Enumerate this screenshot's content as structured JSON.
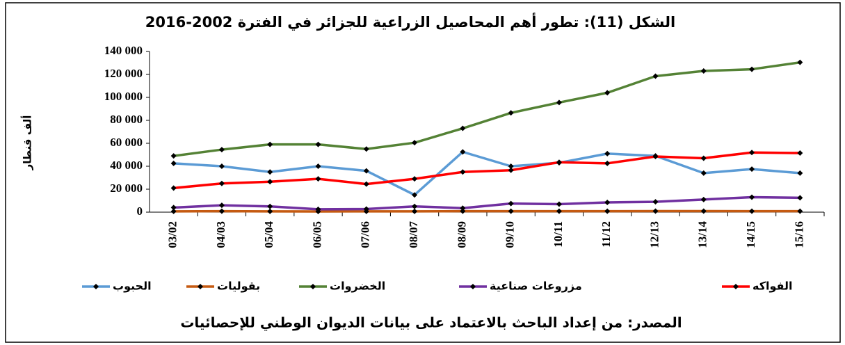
{
  "chart_data": {
    "type": "line",
    "title": "الشكل (11): تطور أهم المحاصيل الزراعية للجزائر في الفترة 2002-2016",
    "y_label": "ألف قنطار",
    "source": "المصدر: من إعداد الباحث بالاعتماد على بيانات الديوان الوطني للإحصائيات",
    "categories": [
      "03/02",
      "04/03",
      "05/04",
      "06/05",
      "07/06",
      "08/07",
      "08/09",
      "09/10",
      "10/11",
      "11/12",
      "12/13",
      "13/14",
      "14/15",
      "15/16"
    ],
    "series": [
      {
        "name": "الحبوب",
        "color": "#5b9bd5",
        "values": [
          42500,
          40000,
          35000,
          40000,
          36000,
          15000,
          52500,
          40000,
          43000,
          51000,
          49000,
          34000,
          37500,
          34000
        ]
      },
      {
        "name": "بقوليات",
        "color": "#c55a11",
        "values": [
          700,
          800,
          700,
          600,
          700,
          700,
          800,
          800,
          800,
          800,
          900,
          900,
          800,
          800
        ]
      },
      {
        "name": "الخضروات",
        "color": "#548235",
        "values": [
          49000,
          54500,
          59000,
          59000,
          55000,
          60500,
          73000,
          86500,
          95500,
          104000,
          118500,
          123000,
          124500,
          130500
        ]
      },
      {
        "name": "مزروعات صناعية",
        "color": "#7030a0",
        "values": [
          4000,
          6000,
          5000,
          2500,
          2700,
          5000,
          3500,
          7500,
          7000,
          8500,
          9000,
          11000,
          13000,
          12500
        ]
      },
      {
        "name": "الفواكه",
        "color": "#ff0000",
        "values": [
          21000,
          25000,
          26500,
          29000,
          24500,
          29000,
          35000,
          36500,
          43500,
          42500,
          48500,
          47000,
          52000,
          51500
        ]
      }
    ],
    "ylim": [
      0,
      140000
    ],
    "yticks": [
      0,
      {
        "value": 20000,
        "label": "20 000"
      },
      {
        "value": 40000,
        "label": "40 000"
      },
      {
        "value": 60000,
        "label": "60 000"
      },
      {
        "value": 80000,
        "label": "80 000"
      },
      {
        "value": 100000,
        "label": "100 000"
      },
      {
        "value": 120000,
        "label": "120 000"
      },
      {
        "value": 140000,
        "label": "140 000"
      }
    ],
    "grid": false
  }
}
